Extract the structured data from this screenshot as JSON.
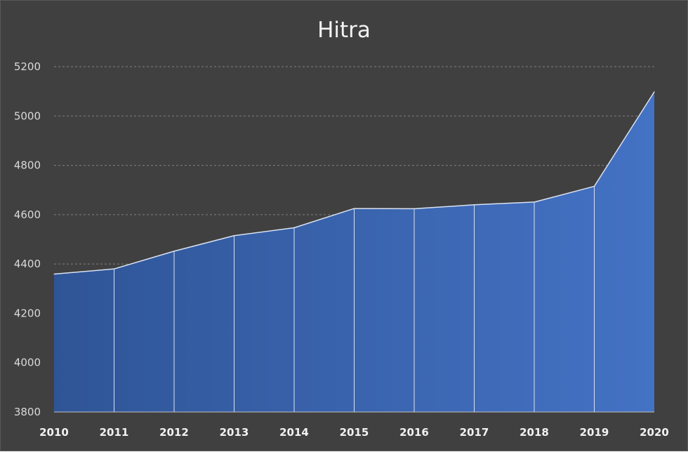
{
  "chart_data": {
    "type": "area",
    "title": "Hitra",
    "xlabel": "",
    "ylabel": "",
    "x": [
      "2010",
      "2011",
      "2012",
      "2013",
      "2014",
      "2015",
      "2016",
      "2017",
      "2018",
      "2019",
      "2020"
    ],
    "series": [
      {
        "values": [
          4359,
          4380,
          4452,
          4515,
          4547,
          4625,
          4624,
          4640,
          4651,
          4715,
          5098
        ]
      }
    ],
    "ylim": [
      3800,
      5200
    ],
    "yticks": [
      "3800",
      "4000",
      "4200",
      "4400",
      "4600",
      "4800",
      "5000",
      "5200"
    ],
    "grid": true,
    "legend": "none",
    "colors": {
      "background": "#404040",
      "area_start": "#2f5597",
      "area_end": "#4472c4",
      "line": "#d9e2f3",
      "grid": "#7f7f7f",
      "text": "#f2f2f2"
    }
  }
}
